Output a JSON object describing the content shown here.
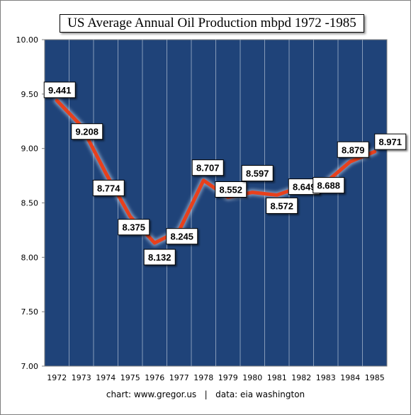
{
  "chart_data": {
    "type": "line",
    "title": "US Average Annual Oil Production mbpd 1972 -1985",
    "xlabel": "",
    "ylabel": "",
    "categories": [
      "1972",
      "1973",
      "1974",
      "1975",
      "1976",
      "1977",
      "1978",
      "1979",
      "1980",
      "1981",
      "1982",
      "1983",
      "1984",
      "1985"
    ],
    "values": [
      9.441,
      9.208,
      8.774,
      8.375,
      8.132,
      8.245,
      8.707,
      8.552,
      8.597,
      8.572,
      8.649,
      8.688,
      8.879,
      8.971
    ],
    "data_labels": [
      "9.441",
      "9.208",
      "8.774",
      "8.375",
      "8.132",
      "8.245",
      "8.707",
      "8.552",
      "8.597",
      "8.572",
      "8.649",
      "8.688",
      "8.879",
      "8.971"
    ],
    "ylim": [
      7.0,
      10.0
    ],
    "yticks": [
      "7.00",
      "7.50",
      "8.00",
      "8.50",
      "9.00",
      "9.50",
      "10.00"
    ],
    "grid": "vertical",
    "line_color": "#e8401c",
    "plot_background": "#1f4379",
    "gridline_color": "#a9b8cf"
  },
  "footer": {
    "source_left": "chart: www.gregor.us",
    "separator": "|",
    "source_right": "data: eia washington"
  }
}
